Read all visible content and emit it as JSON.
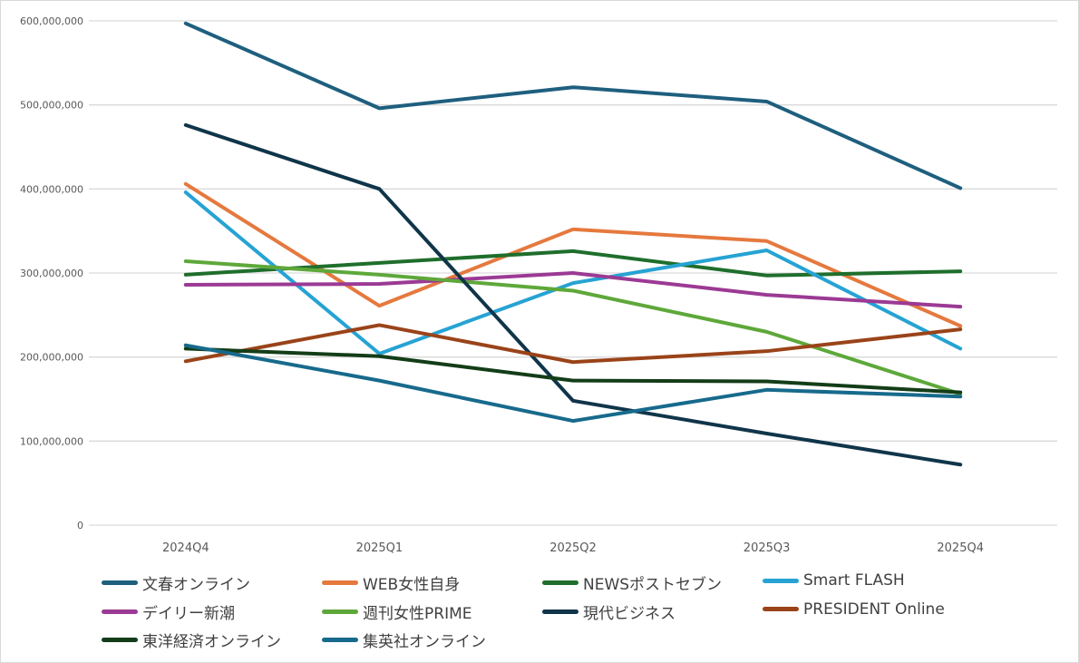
{
  "chart_data": {
    "type": "line",
    "title": "",
    "xlabel": "",
    "ylabel": "",
    "categories": [
      "2024Q4",
      "2025Q1",
      "2025Q2",
      "2025Q3",
      "2025Q4"
    ],
    "ylim": [
      0,
      600000000
    ],
    "yticks": [
      "0",
      "100,000,000",
      "200,000,000",
      "300,000,000",
      "400,000,000",
      "500,000,000",
      "600,000,000"
    ],
    "grid": true,
    "legend_position": "bottom",
    "series": [
      {
        "name": "文春オンライン",
        "color": "#1e5f7e",
        "values": [
          597000000,
          496000000,
          521000000,
          504000000,
          401000000
        ]
      },
      {
        "name": "WEB女性自身",
        "color": "#e5793e",
        "values": [
          406000000,
          261000000,
          352000000,
          338000000,
          237000000
        ]
      },
      {
        "name": "NEWSポストセブン",
        "color": "#1f6e2c",
        "values": [
          298000000,
          312000000,
          326000000,
          297000000,
          302000000
        ]
      },
      {
        "name": "Smart FLASH",
        "color": "#26a3d3",
        "values": [
          396000000,
          204000000,
          288000000,
          327000000,
          210000000
        ]
      },
      {
        "name": "デイリー新潮",
        "color": "#9b3a94",
        "values": [
          286000000,
          287000000,
          300000000,
          274000000,
          260000000
        ]
      },
      {
        "name": "週刊女性PRIME",
        "color": "#5ea83a",
        "values": [
          314000000,
          298000000,
          279000000,
          230000000,
          156000000
        ]
      },
      {
        "name": "現代ビジネス",
        "color": "#10354a",
        "values": [
          476000000,
          400000000,
          148000000,
          109000000,
          72000000
        ]
      },
      {
        "name": "PRESIDENT Online",
        "color": "#9a4319",
        "values": [
          195000000,
          238000000,
          194000000,
          207000000,
          233000000
        ]
      },
      {
        "name": "東洋経済オンライン",
        "color": "#133d18",
        "values": [
          210000000,
          201000000,
          172000000,
          171000000,
          158000000
        ]
      },
      {
        "name": "集英社オンライン",
        "color": "#176a8c",
        "values": [
          214000000,
          172000000,
          124000000,
          161000000,
          153000000
        ]
      }
    ]
  }
}
